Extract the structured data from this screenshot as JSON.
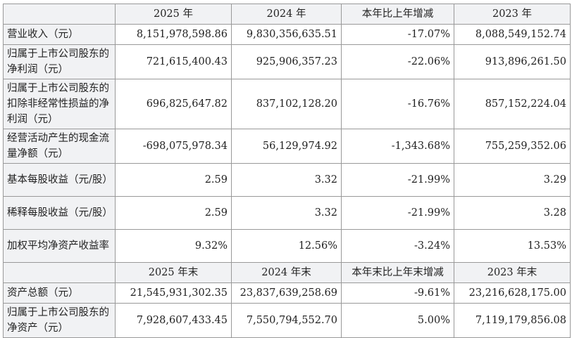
{
  "table": {
    "sections": [
      {
        "header": [
          "2025 年",
          "2024 年",
          "本年比上年增减",
          "2023 年"
        ],
        "rows": [
          [
            "营业收入（元）",
            "8,151,978,598.86",
            "9,830,356,635.51",
            "-17.07%",
            "8,088,549,152.74"
          ],
          [
            "归属于上市公司股东的净利润（元）",
            "721,615,400.43",
            "925,906,357.23",
            "-22.06%",
            "913,896,261.50"
          ],
          [
            "归属于上市公司股东的扣除非经常性损益的净利润（元）",
            "696,825,647.82",
            "837,102,128.20",
            "-16.76%",
            "857,152,224.04"
          ],
          [
            "经营活动产生的现金流量净额（元）",
            "-698,075,978.34",
            "56,129,974.92",
            "-1,343.68%",
            "755,259,352.06"
          ],
          [
            "基本每股收益（元/股）",
            "2.59",
            "3.32",
            "-21.99%",
            "3.29"
          ],
          [
            "稀释每股收益（元/股）",
            "2.59",
            "3.32",
            "-21.99%",
            "3.28"
          ],
          [
            "加权平均净资产收益率",
            "9.32%",
            "12.56%",
            "-3.24%",
            "13.53%"
          ]
        ]
      },
      {
        "header": [
          "2025 年末",
          "2024 年末",
          "本年末比上年末增减",
          "2023 年末"
        ],
        "rows": [
          [
            "资产总额（元）",
            "21,545,931,302.35",
            "23,837,639,258.69",
            "-9.61%",
            "23,216,628,175.00"
          ],
          [
            "归属于上市公司股东的净资产（元）",
            "7,928,607,433.45",
            "7,550,794,552.70",
            "5.00%",
            "7,119,179,856.08"
          ]
        ]
      }
    ]
  }
}
